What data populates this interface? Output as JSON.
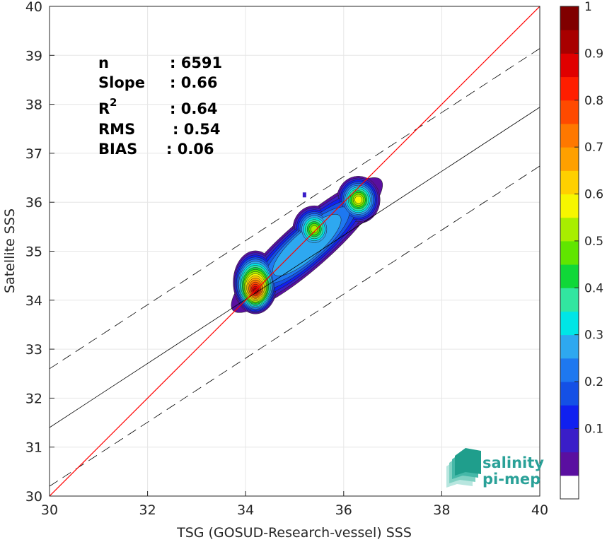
{
  "chart_data": {
    "type": "scatter",
    "subtype": "density-contour",
    "xlabel": "TSG (GOSUD-Research-vessel) SSS",
    "ylabel": "Satellite SSS",
    "xlim": [
      30,
      40
    ],
    "ylim": [
      30,
      40
    ],
    "x_ticks": [
      "30",
      "32",
      "34",
      "36",
      "38",
      "40"
    ],
    "y_ticks": [
      "30",
      "31",
      "32",
      "33",
      "34",
      "35",
      "36",
      "37",
      "38",
      "39",
      "40"
    ],
    "grid": true,
    "stats": [
      {
        "label": "n",
        "value": ": 6591"
      },
      {
        "label": "Slope",
        "value": ": 0.66"
      },
      {
        "label": "R",
        "sup": "2",
        "value": ": 0.64"
      },
      {
        "label": "RMS",
        "value": ": 0.54"
      },
      {
        "label": "BIAS",
        "value": ": 0.06"
      }
    ],
    "lines": {
      "identity": {
        "slope": 1.0,
        "intercept": 0.0,
        "color": "#ff0000"
      },
      "regression": {
        "slope": 0.654,
        "intercept": 11.78,
        "color": "#000000"
      },
      "envelope_offset": 1.2
    },
    "density_peaks": [
      {
        "x": 34.2,
        "y": 34.2,
        "level": 1.0
      },
      {
        "x": 35.4,
        "y": 35.45,
        "level": 0.62
      },
      {
        "x": 36.3,
        "y": 36.05,
        "level": 0.68
      }
    ],
    "outlier": {
      "x": 35.2,
      "y": 36.15
    },
    "colorbar": {
      "ticks": [
        "0.1",
        "0.2",
        "0.3",
        "0.4",
        "0.5",
        "0.6",
        "0.7",
        "0.8",
        "0.9",
        "1"
      ],
      "colors": [
        "#ffffff",
        "#5a0fa0",
        "#3a1ec8",
        "#1020f0",
        "#1450e6",
        "#1e78f0",
        "#2ea8f0",
        "#00e6e6",
        "#32e6a0",
        "#10d838",
        "#60e600",
        "#a8ee00",
        "#f6f600",
        "#ffd000",
        "#ffa000",
        "#ff7800",
        "#ff4a00",
        "#ff1e00",
        "#e00000",
        "#a80000",
        "#800000"
      ]
    }
  },
  "logo": {
    "line1": "salinity",
    "line2": "pi-mep",
    "color": "#2aa198"
  }
}
